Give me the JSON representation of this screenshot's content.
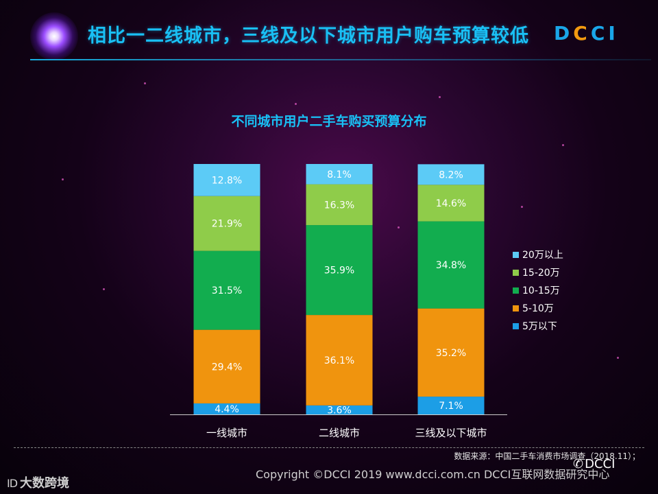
{
  "header": {
    "title": "相比一二线城市，三线及以下城市用户购车预算较低",
    "logo_text": "DCCI"
  },
  "chart_data": {
    "type": "bar",
    "stacked": true,
    "title": "不同城市用户二手车购买预算分布",
    "categories": [
      "一线城市",
      "二线城市",
      "三线及以下城市"
    ],
    "series": [
      {
        "name": "5万以下",
        "color": "#1c9ee6",
        "values": [
          4.4,
          3.6,
          7.1
        ]
      },
      {
        "name": "5-10万",
        "color": "#f0940e",
        "values": [
          29.4,
          36.1,
          35.2
        ]
      },
      {
        "name": "10-15万",
        "color": "#12ad4f",
        "values": [
          31.5,
          35.9,
          34.8
        ]
      },
      {
        "name": "15-20万",
        "color": "#8fcc4a",
        "values": [
          21.9,
          16.3,
          14.6
        ]
      },
      {
        "name": "20万以上",
        "color": "#5ccbf6",
        "values": [
          12.8,
          8.1,
          8.2
        ]
      }
    ],
    "value_suffix": "%",
    "legend_position": "right",
    "ylim": [
      0,
      100
    ]
  },
  "footer": {
    "source": "数据来源：中国二手车消费市场调查（2018.11）；",
    "copyright": "Copyright ©DCCI 2019  www.dcci.com.cn   DCCI互联网数据研究中心",
    "brand_mark": "ID",
    "brand": "大数跨境",
    "wechat": "DCCI"
  }
}
